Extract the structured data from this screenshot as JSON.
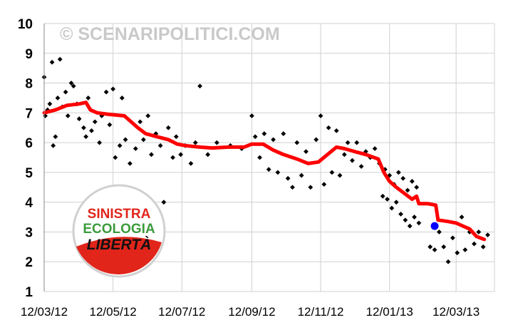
{
  "watermark": "© SCENARIPOLITICI.COM",
  "logo": {
    "line1": "SINISTRA",
    "line2": "ECOLOGIA",
    "line3": "LIBERTÀ",
    "colors": {
      "red": "#e1251b",
      "green": "#3c9a3c",
      "black": "#111111"
    }
  },
  "colors": {
    "trend": "#ff0000",
    "poll": "#000000",
    "highlight": "#0000ff",
    "grid": "#d0d0d0"
  },
  "chart_data": {
    "type": "scatter",
    "title": "",
    "xlabel": "",
    "ylabel": "",
    "ylim": [
      1,
      10
    ],
    "yticks": [
      "1",
      "2",
      "3",
      "4",
      "5",
      "6",
      "7",
      "8",
      "9",
      "10"
    ],
    "xlim": [
      "2012-03-12",
      "2013-04-15"
    ],
    "xticks": [
      {
        "date": "2012-03-12",
        "label": "12/03/12"
      },
      {
        "date": "2012-05-12",
        "label": "12/05/12"
      },
      {
        "date": "2012-07-12",
        "label": "12/07/12"
      },
      {
        "date": "2012-09-12",
        "label": "12/09/12"
      },
      {
        "date": "2012-11-12",
        "label": "12/11/12"
      },
      {
        "date": "2013-01-12",
        "label": "12/01/13"
      },
      {
        "date": "2013-03-12",
        "label": "12/03/13"
      }
    ],
    "grid": true,
    "legend": "none",
    "series": [
      {
        "mode": "line",
        "points": [
          [
            "2012-03-12",
            7.0
          ],
          [
            "2012-03-22",
            7.1
          ],
          [
            "2012-04-01",
            7.25
          ],
          [
            "2012-04-12",
            7.3
          ],
          [
            "2012-04-18",
            7.35
          ],
          [
            "2012-04-22",
            7.1
          ],
          [
            "2012-04-28",
            7.0
          ],
          [
            "2012-05-08",
            6.95
          ],
          [
            "2012-05-22",
            6.9
          ],
          [
            "2012-05-28",
            6.7
          ],
          [
            "2012-06-03",
            6.5
          ],
          [
            "2012-06-10",
            6.3
          ],
          [
            "2012-06-20",
            6.2
          ],
          [
            "2012-06-30",
            6.1
          ],
          [
            "2012-07-08",
            5.95
          ],
          [
            "2012-07-15",
            5.9
          ],
          [
            "2012-07-28",
            5.85
          ],
          [
            "2012-08-08",
            5.82
          ],
          [
            "2012-08-22",
            5.85
          ],
          [
            "2012-09-05",
            5.85
          ],
          [
            "2012-09-12",
            5.95
          ],
          [
            "2012-09-22",
            5.95
          ],
          [
            "2012-10-01",
            5.75
          ],
          [
            "2012-10-10",
            5.6
          ],
          [
            "2012-10-22",
            5.45
          ],
          [
            "2012-11-01",
            5.3
          ],
          [
            "2012-11-10",
            5.35
          ],
          [
            "2012-11-18",
            5.6
          ],
          [
            "2012-11-26",
            5.85
          ],
          [
            "2012-12-03",
            5.8
          ],
          [
            "2012-12-12",
            5.7
          ],
          [
            "2012-12-22",
            5.6
          ],
          [
            "2013-01-02",
            5.45
          ],
          [
            "2013-01-07",
            5.0
          ],
          [
            "2013-01-12",
            4.7
          ],
          [
            "2013-01-18",
            4.5
          ],
          [
            "2013-01-25",
            4.3
          ],
          [
            "2013-02-01",
            4.1
          ],
          [
            "2013-02-05",
            4.2
          ],
          [
            "2013-02-07",
            3.95
          ],
          [
            "2013-02-15",
            3.95
          ],
          [
            "2013-02-22",
            3.9
          ],
          [
            "2013-02-24",
            3.4
          ],
          [
            "2013-03-05",
            3.35
          ],
          [
            "2013-03-12",
            3.3
          ],
          [
            "2013-03-18",
            3.2
          ],
          [
            "2013-03-24",
            3.1
          ],
          [
            "2013-03-30",
            2.85
          ],
          [
            "2013-04-06",
            2.75
          ]
        ]
      },
      {
        "mode": "points",
        "points": [
          [
            "2012-03-12",
            8.2
          ],
          [
            "2012-03-13",
            6.9
          ],
          [
            "2012-03-15",
            7.1
          ],
          [
            "2012-03-17",
            7.3
          ],
          [
            "2012-03-19",
            8.7
          ],
          [
            "2012-03-20",
            5.9
          ],
          [
            "2012-03-22",
            6.2
          ],
          [
            "2012-03-24",
            7.5
          ],
          [
            "2012-03-26",
            8.8
          ],
          [
            "2012-03-28",
            7.2
          ],
          [
            "2012-03-31",
            7.7
          ],
          [
            "2012-04-02",
            6.9
          ],
          [
            "2012-04-05",
            8.0
          ],
          [
            "2012-04-07",
            7.9
          ],
          [
            "2012-04-10",
            7.3
          ],
          [
            "2012-04-12",
            6.8
          ],
          [
            "2012-04-16",
            6.5
          ],
          [
            "2012-04-18",
            6.2
          ],
          [
            "2012-04-20",
            7.5
          ],
          [
            "2012-04-23",
            6.4
          ],
          [
            "2012-04-26",
            6.7
          ],
          [
            "2012-04-30",
            6.0
          ],
          [
            "2012-05-02",
            6.9
          ],
          [
            "2012-05-06",
            7.7
          ],
          [
            "2012-05-09",
            6.6
          ],
          [
            "2012-05-12",
            7.8
          ],
          [
            "2012-05-14",
            5.5
          ],
          [
            "2012-05-18",
            5.9
          ],
          [
            "2012-05-20",
            7.5
          ],
          [
            "2012-05-23",
            6.1
          ],
          [
            "2012-05-27",
            5.3
          ],
          [
            "2012-06-01",
            5.8
          ],
          [
            "2012-06-05",
            6.7
          ],
          [
            "2012-06-08",
            6.1
          ],
          [
            "2012-06-12",
            6.9
          ],
          [
            "2012-06-15",
            5.6
          ],
          [
            "2012-06-19",
            6.3
          ],
          [
            "2012-06-23",
            5.9
          ],
          [
            "2012-06-26",
            4.0
          ],
          [
            "2012-06-30",
            6.5
          ],
          [
            "2012-07-04",
            5.5
          ],
          [
            "2012-07-07",
            6.2
          ],
          [
            "2012-07-11",
            5.6
          ],
          [
            "2012-07-15",
            5.9
          ],
          [
            "2012-07-20",
            5.3
          ],
          [
            "2012-07-24",
            6.0
          ],
          [
            "2012-07-28",
            7.9
          ],
          [
            "2012-08-04",
            5.6
          ],
          [
            "2012-08-12",
            6.0
          ],
          [
            "2012-08-24",
            5.9
          ],
          [
            "2012-09-03",
            5.8
          ],
          [
            "2012-09-12",
            6.9
          ],
          [
            "2012-09-15",
            6.2
          ],
          [
            "2012-09-19",
            5.5
          ],
          [
            "2012-09-23",
            6.3
          ],
          [
            "2012-09-27",
            5.1
          ],
          [
            "2012-10-01",
            6.1
          ],
          [
            "2012-10-05",
            5.0
          ],
          [
            "2012-10-10",
            6.3
          ],
          [
            "2012-10-14",
            4.8
          ],
          [
            "2012-10-18",
            4.5
          ],
          [
            "2012-10-22",
            6.0
          ],
          [
            "2012-10-26",
            4.9
          ],
          [
            "2012-10-30",
            5.7
          ],
          [
            "2012-11-03",
            4.5
          ],
          [
            "2012-11-08",
            6.1
          ],
          [
            "2012-11-12",
            6.9
          ],
          [
            "2012-11-15",
            4.6
          ],
          [
            "2012-11-19",
            6.5
          ],
          [
            "2012-11-22",
            5.0
          ],
          [
            "2012-11-26",
            6.4
          ],
          [
            "2012-11-29",
            4.9
          ],
          [
            "2012-12-03",
            5.6
          ],
          [
            "2012-12-06",
            6.0
          ],
          [
            "2012-12-10",
            5.4
          ],
          [
            "2012-12-14",
            6.0
          ],
          [
            "2012-12-18",
            5.2
          ],
          [
            "2012-12-22",
            5.7
          ],
          [
            "2012-12-26",
            5.5
          ],
          [
            "2012-12-30",
            5.8
          ],
          [
            "2013-01-03",
            5.3
          ],
          [
            "2013-01-06",
            4.2
          ],
          [
            "2013-01-08",
            5.1
          ],
          [
            "2013-01-10",
            4.1
          ],
          [
            "2013-01-12",
            4.9
          ],
          [
            "2013-01-14",
            3.8
          ],
          [
            "2013-01-16",
            4.6
          ],
          [
            "2013-01-18",
            4.0
          ],
          [
            "2013-01-20",
            5.0
          ],
          [
            "2013-01-22",
            3.6
          ],
          [
            "2013-01-24",
            4.8
          ],
          [
            "2013-01-26",
            3.4
          ],
          [
            "2013-01-28",
            4.4
          ],
          [
            "2013-01-30",
            3.2
          ],
          [
            "2013-02-01",
            4.7
          ],
          [
            "2013-02-03",
            3.5
          ],
          [
            "2013-02-05",
            4.5
          ],
          [
            "2013-02-07",
            3.3
          ],
          [
            "2013-02-17",
            2.5
          ],
          [
            "2013-02-21",
            2.4
          ],
          [
            "2013-02-25",
            3.0
          ],
          [
            "2013-03-01",
            2.5
          ],
          [
            "2013-03-05",
            2.0
          ],
          [
            "2013-03-09",
            2.8
          ],
          [
            "2013-03-13",
            2.3
          ],
          [
            "2013-03-17",
            3.5
          ],
          [
            "2013-03-20",
            2.4
          ],
          [
            "2013-03-24",
            3.0
          ],
          [
            "2013-03-28",
            2.6
          ],
          [
            "2013-04-01",
            3.0
          ],
          [
            "2013-04-05",
            2.5
          ],
          [
            "2013-04-09",
            2.9
          ]
        ]
      },
      {
        "mode": "marker",
        "points": [
          [
            "2013-02-21",
            3.2
          ]
        ]
      }
    ]
  }
}
